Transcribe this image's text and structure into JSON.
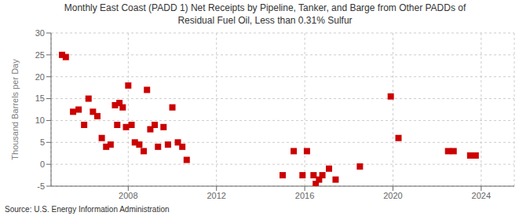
{
  "chart_data": {
    "type": "scatter",
    "title": "Monthly East Coast (PADD 1) Net Receipts by Pipeline, Tanker, and Barge from Other PADDs of\nResidual Fuel Oil, Less than 0.31% Sulfur",
    "ylabel": "Thousand Barrels per Day",
    "annotations": [
      "Source: U.S. Energy Information Administration"
    ],
    "x": [
      2005.0,
      2005.17,
      2005.5,
      2005.75,
      2006.0,
      2006.2,
      2006.4,
      2006.6,
      2006.8,
      2007.0,
      2007.2,
      2007.4,
      2007.5,
      2007.6,
      2007.75,
      2007.9,
      2008.0,
      2008.15,
      2008.3,
      2008.5,
      2008.7,
      2008.85,
      2009.0,
      2009.2,
      2009.35,
      2009.6,
      2009.8,
      2010.0,
      2010.25,
      2010.45,
      2010.65,
      2015.0,
      2015.5,
      2015.9,
      2016.1,
      2016.4,
      2016.5,
      2016.65,
      2016.8,
      2017.1,
      2017.4,
      2018.5,
      2019.9,
      2020.25,
      2022.5,
      2022.75,
      2023.5,
      2023.75
    ],
    "values": [
      25.0,
      24.5,
      12.0,
      12.5,
      9.0,
      15.0,
      12.0,
      11.0,
      6.0,
      4.0,
      4.5,
      13.5,
      9.0,
      14.0,
      13.0,
      8.5,
      18.0,
      9.0,
      5.0,
      4.5,
      3.0,
      17.0,
      8.0,
      9.0,
      4.0,
      8.5,
      4.5,
      13.0,
      5.0,
      4.0,
      1.0,
      -2.5,
      3.0,
      -2.5,
      3.0,
      -2.5,
      -4.5,
      -3.5,
      -2.5,
      -1.0,
      -3.5,
      -0.5,
      15.5,
      6.0,
      3.0,
      3.0,
      2.0,
      2.0
    ],
    "color": "#cc0000",
    "marker": "square",
    "xlim": [
      2004.5,
      2025.5
    ],
    "xticks": [
      2008,
      2012,
      2016,
      2020,
      2024
    ],
    "ylim": [
      -5,
      30
    ],
    "yticks": [
      -5,
      0,
      5,
      10,
      15,
      20,
      25,
      30
    ],
    "grid": true
  }
}
